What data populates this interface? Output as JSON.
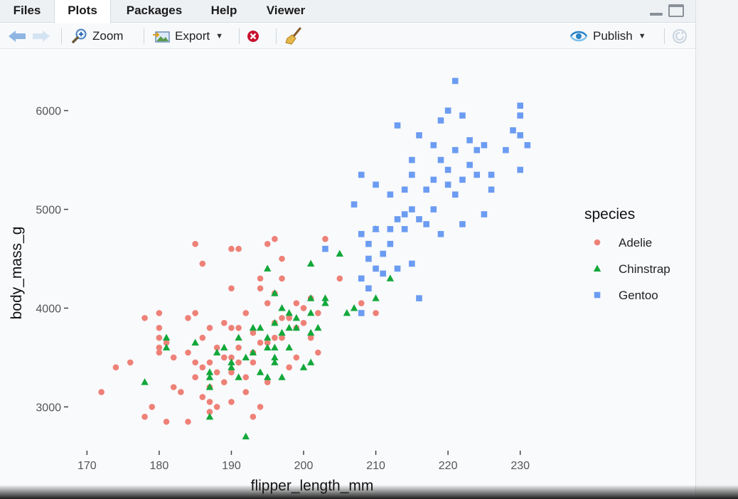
{
  "tabs": [
    {
      "label": "Files",
      "active": false
    },
    {
      "label": "Plots",
      "active": true
    },
    {
      "label": "Packages",
      "active": false
    },
    {
      "label": "Help",
      "active": false
    },
    {
      "label": "Viewer",
      "active": false
    }
  ],
  "toolbar": {
    "back_icon": "arrow-left-icon",
    "forward_icon": "arrow-right-icon",
    "zoom_label": "Zoom",
    "export_label": "Export",
    "remove_icon": "close-circle-icon",
    "clear_icon": "broom-icon",
    "publish_label": "Publish",
    "refresh_icon": "refresh-icon"
  },
  "colors": {
    "Adelie": "#ee8177",
    "Chinstrap": "#12a83a",
    "Gentoo": "#6b9cf2"
  },
  "chart_data": {
    "type": "scatter",
    "xlabel": "flipper_length_mm",
    "ylabel": "body_mass_g",
    "xlim": [
      168,
      232
    ],
    "ylim": [
      2600,
      6400
    ],
    "xticks": [
      170,
      180,
      190,
      200,
      210,
      220,
      230
    ],
    "yticks": [
      3000,
      4000,
      5000,
      6000
    ],
    "grid": false,
    "legend_title": "species",
    "legend_position": "right",
    "series": [
      {
        "name": "Adelie",
        "marker": "circle",
        "points": [
          [
            172,
            3150
          ],
          [
            174,
            3400
          ],
          [
            176,
            3450
          ],
          [
            178,
            3900
          ],
          [
            178,
            2900
          ],
          [
            179,
            3000
          ],
          [
            180,
            3950
          ],
          [
            180,
            3800
          ],
          [
            180,
            3700
          ],
          [
            180,
            3550
          ],
          [
            180,
            3600
          ],
          [
            181,
            2850
          ],
          [
            181,
            3650
          ],
          [
            182,
            3500
          ],
          [
            182,
            3200
          ],
          [
            183,
            3150
          ],
          [
            184,
            3550
          ],
          [
            184,
            3900
          ],
          [
            184,
            2850
          ],
          [
            185,
            3950
          ],
          [
            185,
            3300
          ],
          [
            185,
            3450
          ],
          [
            185,
            4650
          ],
          [
            186,
            3700
          ],
          [
            186,
            3400
          ],
          [
            186,
            3100
          ],
          [
            186,
            4450
          ],
          [
            187,
            3200
          ],
          [
            187,
            3800
          ],
          [
            187,
            3450
          ],
          [
            187,
            3050
          ],
          [
            187,
            2950
          ],
          [
            188,
            3350
          ],
          [
            188,
            3600
          ],
          [
            188,
            3000
          ],
          [
            189,
            3500
          ],
          [
            189,
            3850
          ],
          [
            189,
            3250
          ],
          [
            190,
            3800
          ],
          [
            190,
            3500
          ],
          [
            190,
            3350
          ],
          [
            190,
            4200
          ],
          [
            190,
            4600
          ],
          [
            190,
            3050
          ],
          [
            191,
            3800
          ],
          [
            191,
            3450
          ],
          [
            191,
            4600
          ],
          [
            191,
            3600
          ],
          [
            192,
            3300
          ],
          [
            192,
            3950
          ],
          [
            192,
            3150
          ],
          [
            193,
            3450
          ],
          [
            193,
            3550
          ],
          [
            193,
            3750
          ],
          [
            193,
            2900
          ],
          [
            194,
            3650
          ],
          [
            194,
            4200
          ],
          [
            194,
            4300
          ],
          [
            194,
            3000
          ],
          [
            195,
            4050
          ],
          [
            195,
            3250
          ],
          [
            195,
            3650
          ],
          [
            195,
            4650
          ],
          [
            196,
            3850
          ],
          [
            196,
            4150
          ],
          [
            196,
            3700
          ],
          [
            196,
            4700
          ],
          [
            197,
            3700
          ],
          [
            197,
            4500
          ],
          [
            197,
            3900
          ],
          [
            197,
            4300
          ],
          [
            198,
            3900
          ],
          [
            198,
            3400
          ],
          [
            199,
            3500
          ],
          [
            199,
            3800
          ],
          [
            199,
            4050
          ],
          [
            200,
            3850
          ],
          [
            200,
            4000
          ],
          [
            201,
            3700
          ],
          [
            201,
            4100
          ],
          [
            202,
            3550
          ],
          [
            202,
            3950
          ],
          [
            203,
            4700
          ],
          [
            205,
            4300
          ],
          [
            208,
            4050
          ],
          [
            210,
            3950
          ],
          [
            210,
            4400
          ]
        ]
      },
      {
        "name": "Chinstrap",
        "marker": "triangle",
        "points": [
          [
            178,
            3250
          ],
          [
            181,
            3700
          ],
          [
            181,
            3600
          ],
          [
            185,
            3650
          ],
          [
            187,
            2900
          ],
          [
            187,
            3300
          ],
          [
            187,
            3200
          ],
          [
            187,
            3350
          ],
          [
            188,
            3550
          ],
          [
            189,
            3600
          ],
          [
            190,
            3450
          ],
          [
            190,
            3400
          ],
          [
            191,
            3300
          ],
          [
            191,
            3700
          ],
          [
            192,
            2700
          ],
          [
            192,
            3500
          ],
          [
            193,
            3800
          ],
          [
            193,
            3550
          ],
          [
            194,
            3800
          ],
          [
            194,
            3350
          ],
          [
            195,
            4400
          ],
          [
            195,
            3700
          ],
          [
            195,
            3300
          ],
          [
            195,
            3600
          ],
          [
            196,
            3600
          ],
          [
            196,
            3500
          ],
          [
            196,
            3450
          ],
          [
            196,
            4150
          ],
          [
            196,
            3850
          ],
          [
            197,
            3300
          ],
          [
            197,
            3750
          ],
          [
            197,
            4000
          ],
          [
            198,
            3800
          ],
          [
            198,
            3950
          ],
          [
            198,
            3600
          ],
          [
            199,
            3900
          ],
          [
            199,
            3800
          ],
          [
            200,
            3400
          ],
          [
            201,
            3750
          ],
          [
            201,
            4100
          ],
          [
            201,
            3950
          ],
          [
            201,
            3450
          ],
          [
            201,
            4450
          ],
          [
            202,
            3800
          ],
          [
            203,
            4050
          ],
          [
            203,
            4100
          ],
          [
            205,
            4550
          ],
          [
            206,
            3950
          ],
          [
            207,
            4000
          ],
          [
            210,
            4800
          ],
          [
            210,
            4100
          ],
          [
            212,
            4300
          ]
        ]
      },
      {
        "name": "Gentoo",
        "marker": "square",
        "points": [
          [
            203,
            4600
          ],
          [
            207,
            5050
          ],
          [
            208,
            4750
          ],
          [
            208,
            4300
          ],
          [
            208,
            5350
          ],
          [
            208,
            3950
          ],
          [
            209,
            4500
          ],
          [
            209,
            4200
          ],
          [
            209,
            4650
          ],
          [
            210,
            4800
          ],
          [
            210,
            4400
          ],
          [
            210,
            5250
          ],
          [
            211,
            4350
          ],
          [
            211,
            4550
          ],
          [
            212,
            4800
          ],
          [
            212,
            5150
          ],
          [
            212,
            4650
          ],
          [
            213,
            4400
          ],
          [
            213,
            4900
          ],
          [
            213,
            5850
          ],
          [
            214,
            4950
          ],
          [
            214,
            5200
          ],
          [
            214,
            4800
          ],
          [
            215,
            5500
          ],
          [
            215,
            5000
          ],
          [
            215,
            5350
          ],
          [
            215,
            4450
          ],
          [
            216,
            4100
          ],
          [
            216,
            5750
          ],
          [
            216,
            4900
          ],
          [
            217,
            5200
          ],
          [
            217,
            4850
          ],
          [
            218,
            5300
          ],
          [
            218,
            5000
          ],
          [
            218,
            5650
          ],
          [
            219,
            5500
          ],
          [
            219,
            5900
          ],
          [
            219,
            4750
          ],
          [
            220,
            6000
          ],
          [
            220,
            5400
          ],
          [
            220,
            5250
          ],
          [
            221,
            6300
          ],
          [
            221,
            5600
          ],
          [
            221,
            5150
          ],
          [
            222,
            5300
          ],
          [
            222,
            4850
          ],
          [
            222,
            5950
          ],
          [
            223,
            5700
          ],
          [
            223,
            5450
          ],
          [
            224,
            5350
          ],
          [
            224,
            5600
          ],
          [
            225,
            5650
          ],
          [
            225,
            4950
          ],
          [
            226,
            5350
          ],
          [
            226,
            5200
          ],
          [
            228,
            5600
          ],
          [
            229,
            5800
          ],
          [
            230,
            5950
          ],
          [
            230,
            5400
          ],
          [
            230,
            5750
          ],
          [
            230,
            6050
          ],
          [
            231,
            5650
          ]
        ]
      }
    ]
  }
}
